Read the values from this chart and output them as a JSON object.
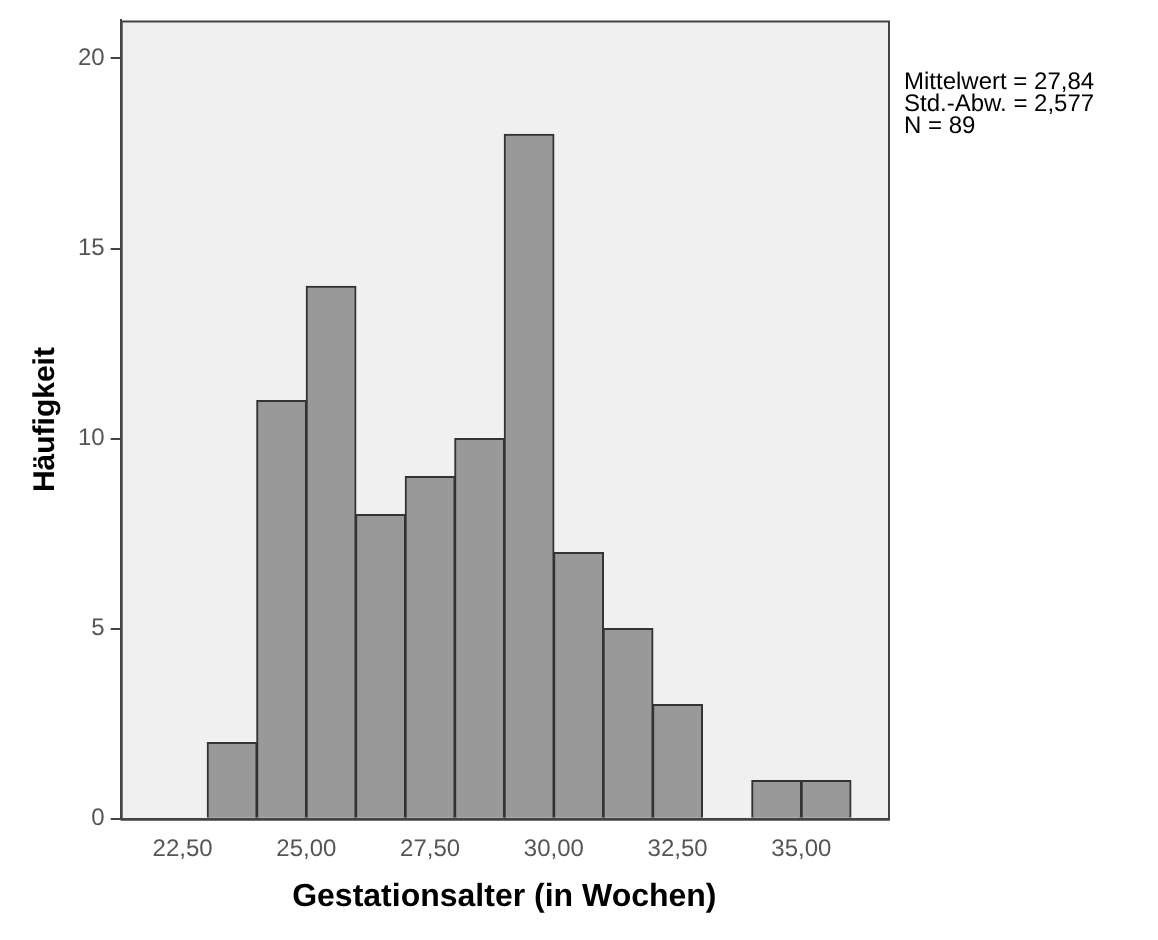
{
  "chart_data": {
    "type": "histogram",
    "xlabel": "Gestationsalter (in Wochen)",
    "ylabel": "Häufigkeit",
    "bins": [
      23,
      24,
      25,
      26,
      27,
      28,
      29,
      30,
      31,
      32,
      33,
      34,
      35,
      36
    ],
    "values": [
      2,
      11,
      14,
      8,
      9,
      10,
      18,
      7,
      5,
      3,
      0,
      1,
      1
    ],
    "color": "#999999",
    "xlim": [
      21.25,
      36.75
    ],
    "xticks": [
      {
        "value": 22.5,
        "label": "22,50"
      },
      {
        "value": 25,
        "label": "25,00"
      },
      {
        "value": 27.5,
        "label": "27,50"
      },
      {
        "value": 30,
        "label": "30,00"
      },
      {
        "value": 32.5,
        "label": "32,50"
      },
      {
        "value": 35,
        "label": "35,00"
      }
    ],
    "ylim": [
      0,
      21
    ],
    "yticks": [
      0,
      5,
      10,
      15,
      20
    ],
    "grid": false,
    "legend": false,
    "annotations": [
      "Mittelwert = 27,84",
      "Std.-Abw. = 2,577",
      "N = 89"
    ]
  }
}
